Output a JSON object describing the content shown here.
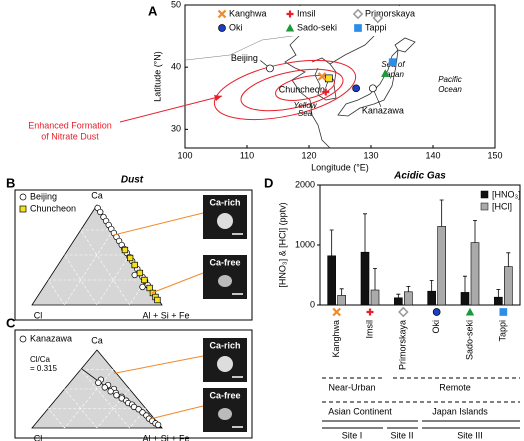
{
  "panel_labels": [
    "A",
    "B",
    "C",
    "D"
  ],
  "map": {
    "xlabel": "Longitude (°E)",
    "ylabel": "Latitude (°N)",
    "xlim": [
      100,
      150
    ],
    "xticks": [
      100,
      110,
      120,
      130,
      140,
      150
    ],
    "ylim": [
      27,
      50
    ],
    "yticks": [
      30,
      40,
      50
    ],
    "sites": [
      {
        "name": "Kanghwa",
        "color": "#f0892a",
        "marker": "x",
        "lon": 122.1,
        "lat": 38.5
      },
      {
        "name": "Imsil",
        "color": "#e8202a",
        "marker": "plus",
        "lon": 122.7,
        "lat": 36
      },
      {
        "name": "Primorskaya",
        "color": "#999999",
        "marker": "diamond",
        "lon": 131.1,
        "lat": 47.9
      },
      {
        "name": "Oki",
        "color": "#1c3fc8",
        "marker": "circle",
        "lon": 127.6,
        "lat": 36.6
      },
      {
        "name": "Sado-seki",
        "color": "#1a9a3a",
        "marker": "triangle",
        "lon": 132.3,
        "lat": 39
      },
      {
        "name": "Tappi",
        "color": "#2c8ee8",
        "marker": "square",
        "lon": 133.5,
        "lat": 40.8
      }
    ],
    "cities": [
      {
        "name": "Beijing",
        "color": "#ffffff",
        "marker": "circle",
        "lon": 113.7,
        "lat": 39.8
      },
      {
        "name": "Chuncheon",
        "color": "#f5e11e",
        "marker": "square",
        "lon": 123.2,
        "lat": 38.2
      },
      {
        "name": "Kanazawa",
        "color": "#ffffff",
        "marker": "circle",
        "lon": 130.3,
        "lat": 36.6
      }
    ],
    "place_labels": [
      [
        "Sea of",
        "Japan"
      ],
      [
        "Pacific",
        "Ocean"
      ],
      [
        "Yellow",
        "Sea"
      ]
    ],
    "annotation": [
      "Enhanced Formation",
      "of Nitrate Dust"
    ]
  },
  "dust": {
    "title": "Dust",
    "apex": "Ca",
    "left": "Cl",
    "right": "Al + Si + Fe",
    "image_labels": [
      "Ca-rich",
      "Ca-free"
    ],
    "series": [
      {
        "name": "Beijing",
        "color": "#ffffff",
        "marker": "circle",
        "ca": [
          0.97,
          0.93,
          0.88,
          0.84,
          0.8,
          0.76,
          0.72,
          0.68,
          0.64,
          0.6,
          0.56,
          0.52,
          0.48,
          0.44,
          0.4,
          0.36,
          0.32,
          0.28,
          0.24,
          0.2,
          0.3,
          0.18
        ],
        "cl": [
          0.01,
          0.01,
          0.01,
          0.01,
          0.01,
          0.01,
          0.01,
          0.01,
          0.01,
          0.01,
          0.01,
          0.01,
          0.01,
          0.01,
          0.01,
          0.01,
          0.01,
          0.01,
          0.01,
          0.01,
          0.06,
          0.06
        ]
      },
      {
        "name": "Chuncheon",
        "color": "#f5e11e",
        "marker": "square",
        "ca": [
          0.55,
          0.47,
          0.4,
          0.32,
          0.25,
          0.17,
          0.12,
          0.08,
          0.05
        ],
        "cl": [
          0.01,
          0.01,
          0.01,
          0.01,
          0.01,
          0.01,
          0.01,
          0.01,
          0.01
        ]
      }
    ]
  },
  "kanazawa": {
    "apex": "Ca",
    "left": "Cl",
    "right": "Al + Si + Fe",
    "image_labels": [
      "Ca-rich",
      "Ca-free"
    ],
    "ratio": 0.315,
    "ratio_label": [
      "Cl/Ca",
      "= 0.315"
    ],
    "series": [
      {
        "name": "Kanazawa",
        "color": "#ffffff",
        "marker": "circle",
        "ca": [
          0.62,
          0.58,
          0.55,
          0.52,
          0.5,
          0.47,
          0.45,
          0.42,
          0.4,
          0.38,
          0.35,
          0.32,
          0.3,
          0.27,
          0.24,
          0.2,
          0.16,
          0.12,
          0.09,
          0.06,
          0.04
        ],
        "cl": [
          0.16,
          0.2,
          0.14,
          0.18,
          0.12,
          0.16,
          0.13,
          0.14,
          0.11,
          0.12,
          0.1,
          0.1,
          0.08,
          0.08,
          0.06,
          0.05,
          0.04,
          0.04,
          0.03,
          0.02,
          0.01
        ]
      }
    ]
  },
  "chart_data": {
    "type": "bar",
    "title": "Acidic Gas",
    "ylabel": "[HNO₃] & [HCl] (pptv)",
    "categories": [
      "Kanghwa",
      "Imsil",
      "Primorskaya",
      "Oki",
      "Sado-seki",
      "Tappi"
    ],
    "category_colors": [
      "#f0892a",
      "#e8202a",
      "#999999",
      "#1c3fc8",
      "#1a9a3a",
      "#2c8ee8"
    ],
    "category_markers": [
      "x",
      "plus",
      "diamond",
      "circle",
      "triangle",
      "square"
    ],
    "series": [
      {
        "name": "[HNO₃]",
        "color": "#111111",
        "values": [
          820,
          880,
          120,
          230,
          210,
          130
        ],
        "errors": [
          430,
          640,
          60,
          180,
          270,
          130
        ]
      },
      {
        "name": "[HCl]",
        "color": "#aaaaaa",
        "values": [
          160,
          250,
          220,
          1310,
          1040,
          640
        ],
        "errors": [
          110,
          360,
          90,
          440,
          370,
          230
        ]
      }
    ],
    "ylim": [
      0,
      2000
    ],
    "yticks": [
      0,
      1000,
      2000
    ],
    "groupings": [
      [
        "Near-Urban",
        "Remote"
      ],
      [
        "Asian Continent",
        "Japan Islands"
      ],
      [
        "Site I",
        "Site II",
        "Site III"
      ]
    ]
  }
}
